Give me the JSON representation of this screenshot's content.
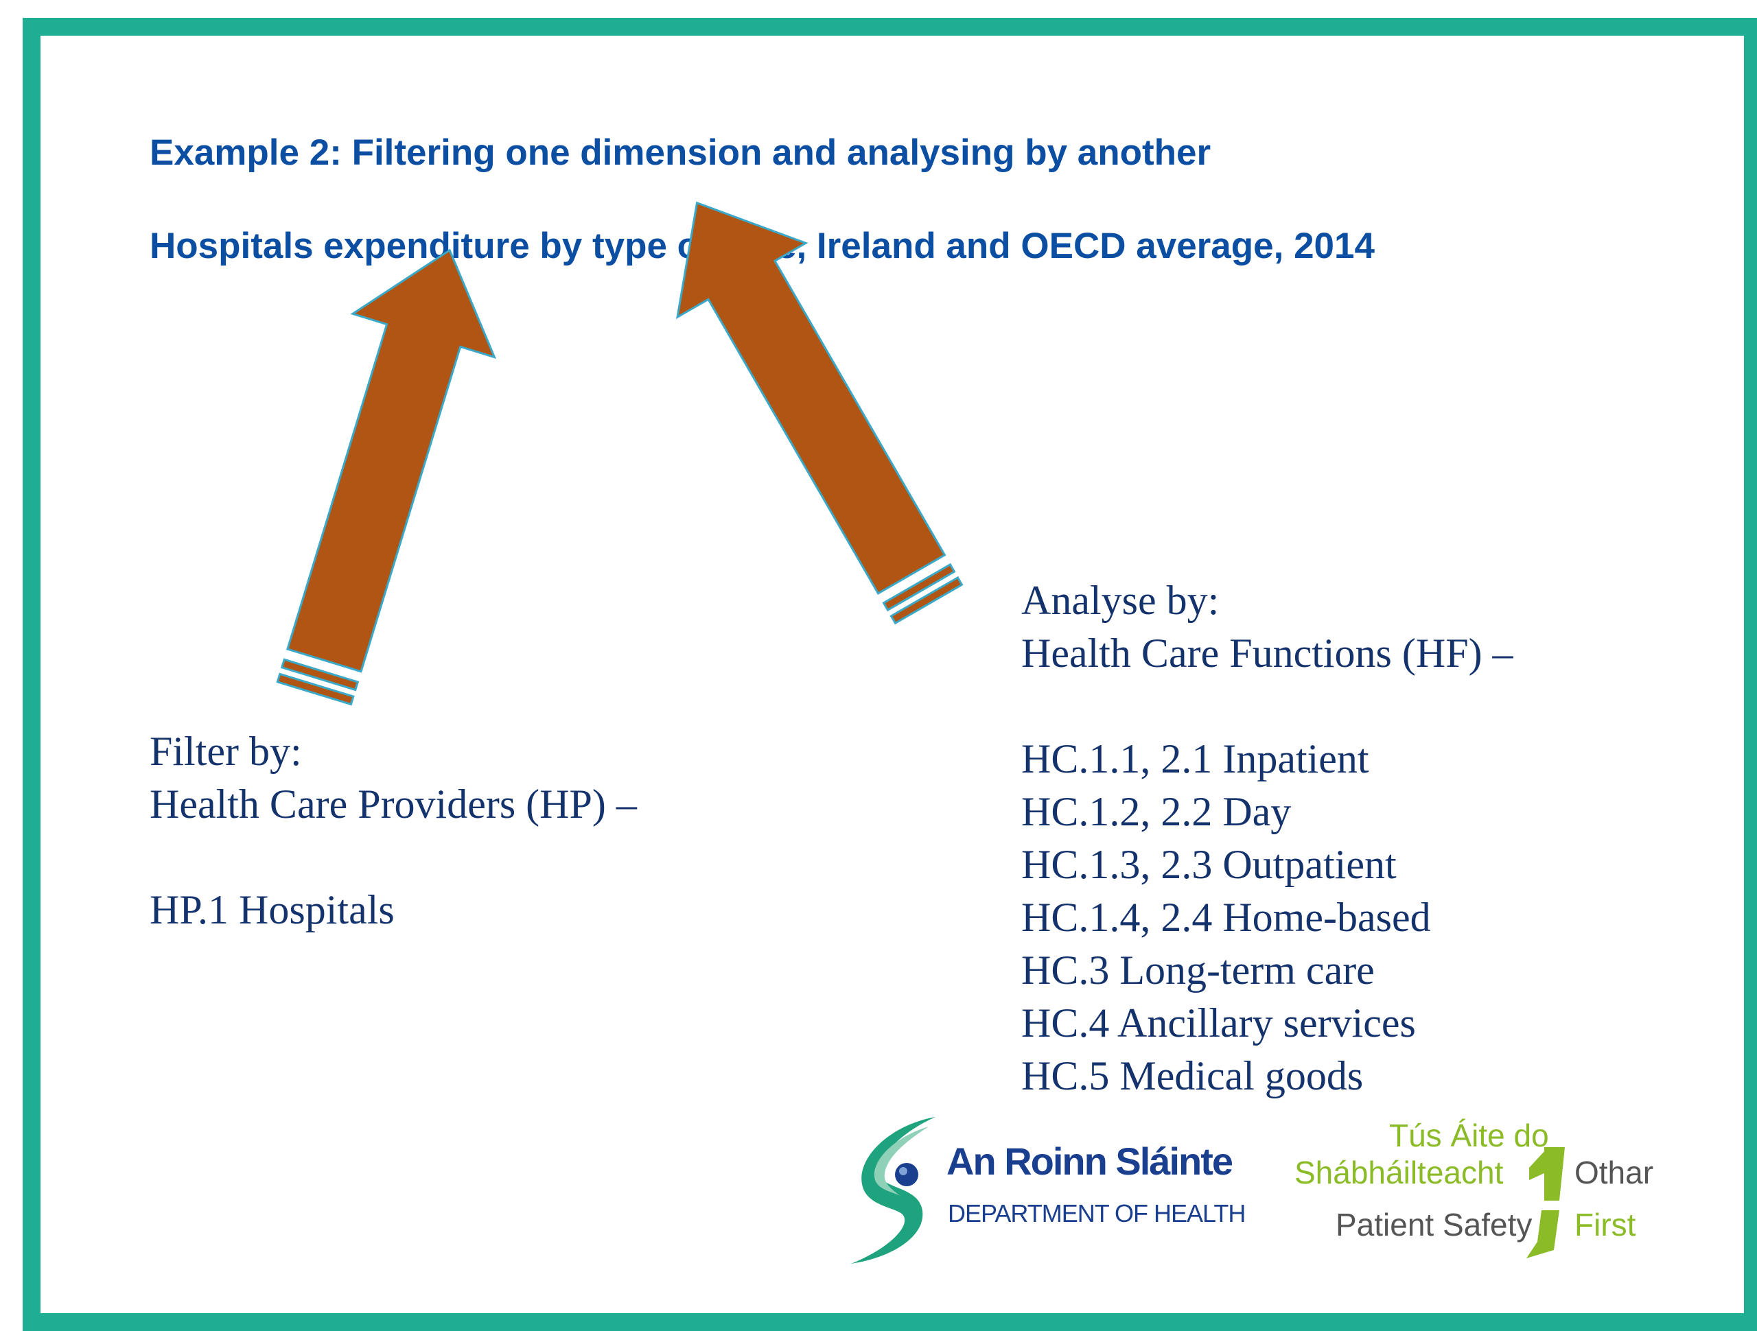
{
  "slide": {
    "title": "Example 2: Filtering one dimension and analysing by another",
    "subtitle": "Hospitals expenditure by type of care, Ireland and OECD average, 2014"
  },
  "filter": {
    "lines": [
      "Filter by:",
      "Health Care Providers (HP) –",
      "",
      "HP.1 Hospitals"
    ]
  },
  "analyse": {
    "lines": [
      "Analyse by:",
      "Health Care Functions (HF) –",
      "",
      "HC.1.1, 2.1 Inpatient",
      "HC.1.2, 2.2 Day",
      "HC.1.3, 2.3 Outpatient",
      "HC.1.4, 2.4 Home-based",
      "HC.3 Long-term care",
      "HC.4 Ancillary services",
      "HC.5 Medical goods"
    ]
  },
  "logos": {
    "department": {
      "name": "An Roinn Sláinte",
      "subtitle": "DEPARTMENT OF HEALTH"
    },
    "patient_safety": {
      "line1": "Tús Áite do",
      "line2": "Shábháilteacht",
      "line2_end": "Othar",
      "line3": "Patient Safety",
      "line3_end": "First"
    }
  },
  "colors": {
    "frame": "#1fae93",
    "heading": "#0b4ea2",
    "body_text": "#14326b",
    "arrow_fill": "#b05514",
    "arrow_outline": "#3aa9c9"
  }
}
